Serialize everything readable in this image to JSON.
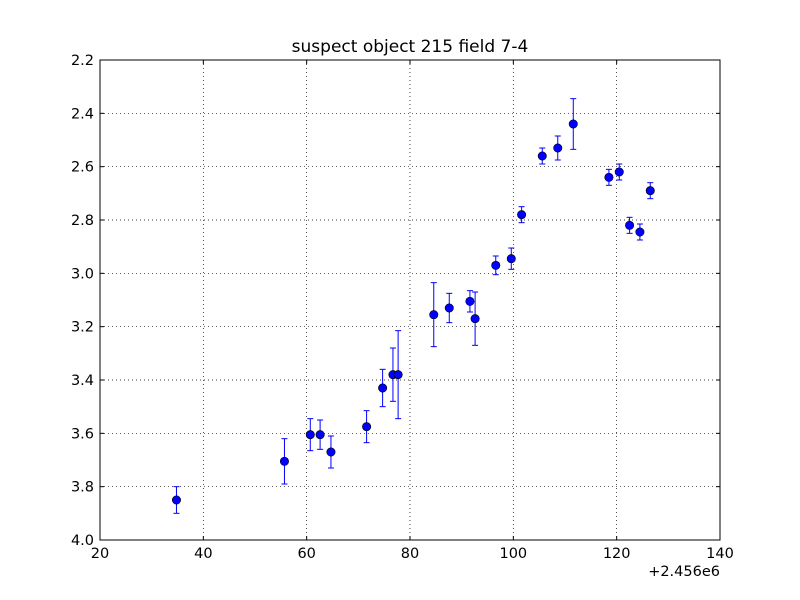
{
  "chart_data": {
    "type": "scatter",
    "title": "suspect object 215 field 7-4",
    "xlabel": "",
    "ylabel": "",
    "x_offset_label": "+2.456e6",
    "xlim": [
      20,
      140
    ],
    "ylim": [
      2.2,
      4.0
    ],
    "y_inverted": true,
    "x_ticks": [
      20,
      40,
      60,
      80,
      100,
      120,
      140
    ],
    "y_ticks": [
      2.2,
      2.4,
      2.6,
      2.8,
      3.0,
      3.2,
      3.4,
      3.6,
      3.8,
      4.0
    ],
    "x_tick_labels": [
      "20",
      "40",
      "60",
      "80",
      "100",
      "120",
      "140"
    ],
    "y_tick_labels": [
      "2.2",
      "2.4",
      "2.6",
      "2.8",
      "3.0",
      "3.2",
      "3.4",
      "3.6",
      "3.8",
      "4.0"
    ],
    "grid": true,
    "marker_color": "#0000ff",
    "errorbar_color": "#0000ff",
    "points": [
      {
        "x": 34.8,
        "y": 3.85,
        "err": 0.05
      },
      {
        "x": 55.7,
        "y": 3.705,
        "err": 0.085
      },
      {
        "x": 60.7,
        "y": 3.605,
        "err": 0.06
      },
      {
        "x": 62.6,
        "y": 3.605,
        "err": 0.055
      },
      {
        "x": 64.7,
        "y": 3.67,
        "err": 0.06
      },
      {
        "x": 71.6,
        "y": 3.575,
        "err": 0.06
      },
      {
        "x": 74.7,
        "y": 3.43,
        "err": 0.07
      },
      {
        "x": 76.7,
        "y": 3.38,
        "err": 0.1
      },
      {
        "x": 77.7,
        "y": 3.38,
        "err": 0.165
      },
      {
        "x": 84.6,
        "y": 3.155,
        "err": 0.12
      },
      {
        "x": 87.6,
        "y": 3.13,
        "err": 0.055
      },
      {
        "x": 91.6,
        "y": 3.105,
        "err": 0.04
      },
      {
        "x": 92.6,
        "y": 3.17,
        "err": 0.1
      },
      {
        "x": 96.6,
        "y": 2.97,
        "err": 0.035
      },
      {
        "x": 99.6,
        "y": 2.945,
        "err": 0.04
      },
      {
        "x": 101.6,
        "y": 2.78,
        "err": 0.03
      },
      {
        "x": 105.6,
        "y": 2.56,
        "err": 0.03
      },
      {
        "x": 108.6,
        "y": 2.53,
        "err": 0.045
      },
      {
        "x": 111.6,
        "y": 2.44,
        "err": 0.095
      },
      {
        "x": 118.5,
        "y": 2.64,
        "err": 0.03
      },
      {
        "x": 120.5,
        "y": 2.62,
        "err": 0.03
      },
      {
        "x": 122.5,
        "y": 2.82,
        "err": 0.03
      },
      {
        "x": 124.5,
        "y": 2.845,
        "err": 0.03
      },
      {
        "x": 126.5,
        "y": 2.69,
        "err": 0.03
      }
    ]
  }
}
